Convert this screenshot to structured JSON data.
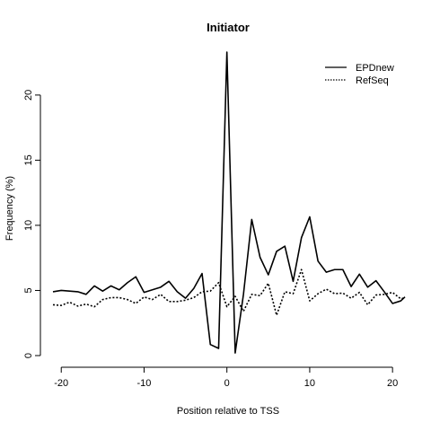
{
  "chart_data": {
    "type": "line",
    "title": "Initiator",
    "xlabel": "Position relative to TSS",
    "ylabel": "Frequency (%)",
    "xlim": [
      -21,
      21.5
    ],
    "ylim": [
      0,
      23.3
    ],
    "xticks": [
      -20,
      -10,
      0,
      10,
      20
    ],
    "yticks": [
      0,
      5,
      10,
      15,
      20
    ],
    "grid": false,
    "legend_position": "top-right",
    "x": [
      -21,
      -20,
      -19,
      -18,
      -17,
      -16,
      -15,
      -14,
      -13,
      -12,
      -11,
      -10,
      -9,
      -8,
      -7,
      -6,
      -5,
      -4,
      -3,
      -2,
      -1,
      0,
      1,
      2,
      3,
      4,
      5,
      6,
      7,
      8,
      9,
      10,
      11,
      12,
      13,
      14,
      15,
      16,
      17,
      18,
      19,
      20,
      21,
      21.5
    ],
    "series": [
      {
        "name": "EPDnew",
        "line_style": "solid",
        "color": "#000000",
        "values": [
          4.9,
          5.0,
          4.95,
          4.9,
          4.7,
          5.35,
          4.95,
          5.35,
          5.05,
          5.6,
          6.05,
          4.85,
          5.05,
          5.25,
          5.7,
          4.9,
          4.4,
          5.15,
          6.3,
          0.85,
          0.55,
          23.3,
          0.2,
          4.7,
          10.45,
          7.55,
          6.2,
          8.0,
          8.4,
          5.7,
          9.05,
          10.65,
          7.25,
          6.4,
          6.6,
          6.6,
          5.3,
          6.25,
          5.25,
          5.75,
          4.9,
          4.0,
          4.2,
          4.5
        ]
      },
      {
        "name": "RefSeq",
        "line_style": "dotted",
        "color": "#000000",
        "values": [
          3.9,
          3.85,
          4.1,
          3.8,
          3.95,
          3.75,
          4.3,
          4.45,
          4.45,
          4.3,
          4.0,
          4.5,
          4.3,
          4.7,
          4.15,
          4.15,
          4.25,
          4.45,
          4.9,
          4.95,
          5.6,
          3.75,
          4.55,
          3.4,
          4.7,
          4.6,
          5.55,
          3.1,
          4.9,
          4.75,
          6.6,
          4.2,
          4.75,
          5.1,
          4.75,
          4.8,
          4.4,
          4.85,
          3.9,
          4.65,
          4.7,
          4.85,
          4.35,
          4.45
        ]
      }
    ]
  }
}
